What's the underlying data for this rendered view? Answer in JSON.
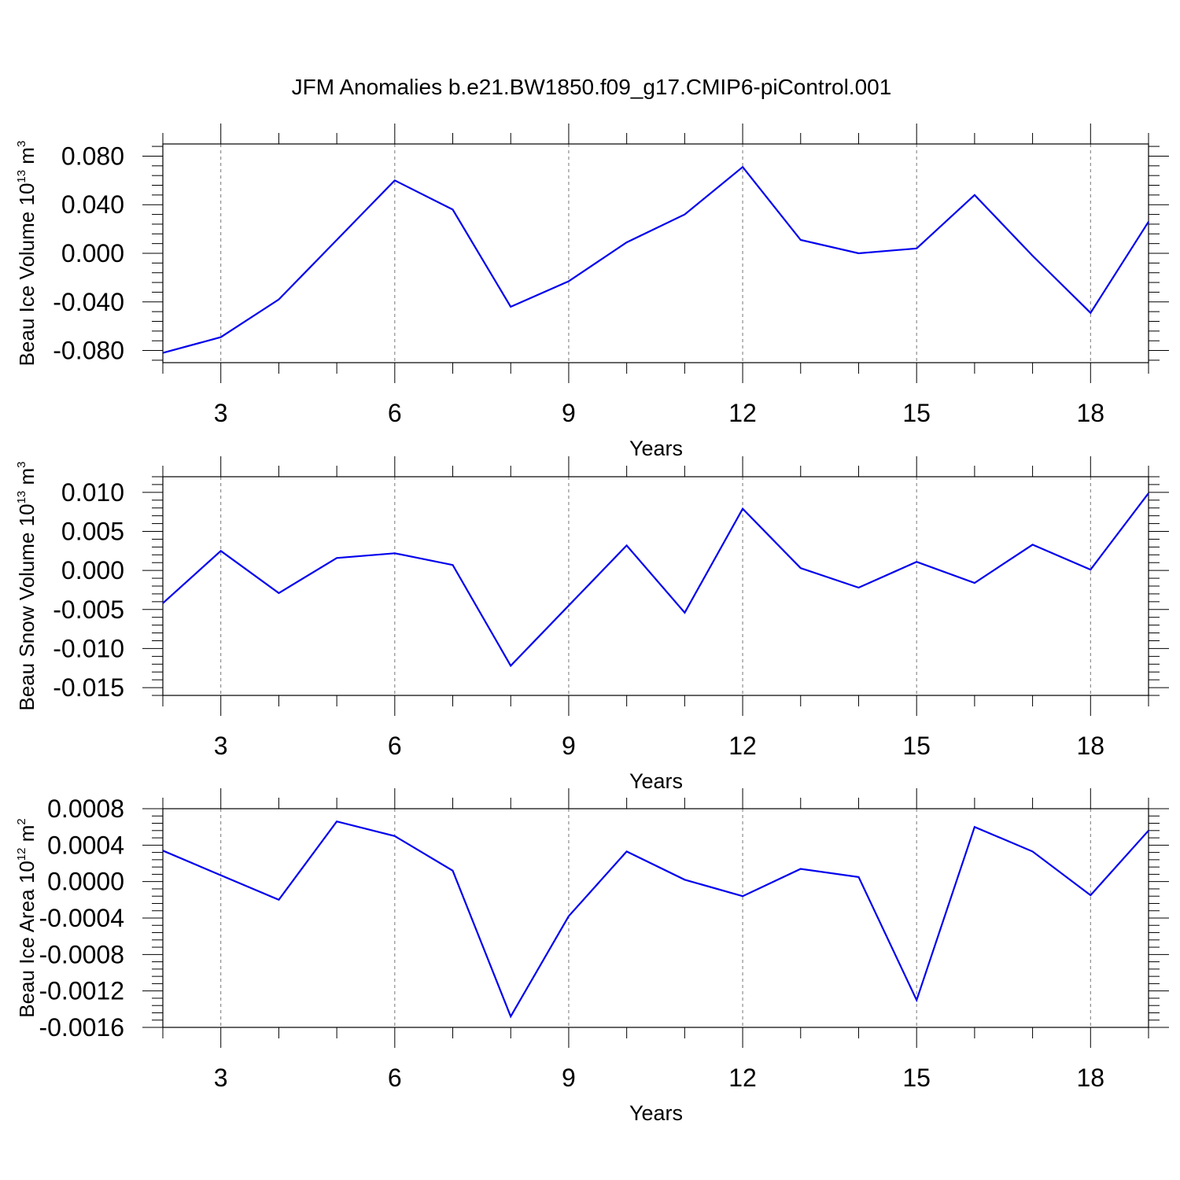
{
  "title": "JFM Anomalies b.e21.BW1850.f09_g17.CMIP6-piControl.001",
  "colors": {
    "line": "#0000ee",
    "axes": "#000000",
    "grid": "#777777"
  },
  "chart_data": [
    {
      "type": "line",
      "ylabel": {
        "main": "Beau Ice Volume 10",
        "exp": "13",
        "unit_space": " m",
        "unit_exp": "3"
      },
      "xlabel": "Years",
      "xlim": [
        2,
        19
      ],
      "ylim": [
        -0.09,
        0.09
      ],
      "xticks": [
        3,
        6,
        9,
        12,
        15,
        18
      ],
      "yticks": [
        -0.08,
        -0.04,
        0.0,
        0.04,
        0.08
      ],
      "ytick_labels": [
        "-0.080",
        "-0.040",
        "0.000",
        "0.040",
        "0.080"
      ],
      "grid": "vertical-dashed",
      "series": [
        {
          "x": [
            2,
            3,
            4,
            5,
            6,
            7,
            8,
            9,
            10,
            11,
            12,
            13,
            14,
            15,
            16,
            17,
            18,
            19
          ],
          "values": [
            -0.082,
            -0.069,
            -0.038,
            0.011,
            0.06,
            0.036,
            -0.044,
            -0.023,
            0.009,
            0.032,
            0.071,
            0.011,
            0.0,
            0.004,
            0.048,
            -0.002,
            -0.049,
            0.026
          ]
        }
      ]
    },
    {
      "type": "line",
      "ylabel": {
        "main": "Beau Snow Volume 10",
        "exp": "13",
        "unit_space": " m",
        "unit_exp": "3"
      },
      "xlabel": "Years",
      "xlim": [
        2,
        19
      ],
      "ylim": [
        -0.016,
        0.012
      ],
      "xticks": [
        3,
        6,
        9,
        12,
        15,
        18
      ],
      "yticks": [
        -0.015,
        -0.01,
        -0.005,
        0.0,
        0.005,
        0.01
      ],
      "ytick_labels": [
        "-0.015",
        "-0.010",
        "-0.005",
        "0.000",
        "0.005",
        "0.010"
      ],
      "grid": "vertical-dashed",
      "series": [
        {
          "x": [
            2,
            3,
            4,
            5,
            6,
            7,
            8,
            9,
            10,
            11,
            12,
            13,
            14,
            15,
            16,
            17,
            18,
            19
          ],
          "values": [
            -0.0042,
            0.0025,
            -0.0029,
            0.0016,
            0.0022,
            0.0007,
            -0.0122,
            -0.0045,
            0.0032,
            -0.0054,
            0.0079,
            0.0003,
            -0.0022,
            0.0011,
            -0.0016,
            0.0033,
            0.0001,
            0.0099
          ]
        }
      ]
    },
    {
      "type": "line",
      "ylabel": {
        "main": "Beau Ice Area 10",
        "exp": "12",
        "unit_space": " m",
        "unit_exp": "2"
      },
      "xlabel": "Years",
      "xlim": [
        2,
        19
      ],
      "ylim": [
        -0.0016,
        0.0008
      ],
      "xticks": [
        3,
        6,
        9,
        12,
        15,
        18
      ],
      "yticks": [
        -0.0016,
        -0.0012,
        -0.0008,
        -0.0004,
        0.0,
        0.0004,
        0.0008
      ],
      "ytick_labels": [
        "-0.0016",
        "-0.0012",
        "-0.0008",
        "-0.0004",
        "0.0000",
        "0.0004",
        "0.0008"
      ],
      "grid": "vertical-dashed",
      "series": [
        {
          "x": [
            2,
            3,
            4,
            5,
            6,
            7,
            8,
            9,
            10,
            11,
            12,
            13,
            14,
            15,
            16,
            17,
            18,
            19
          ],
          "values": [
            0.00034,
            7e-05,
            -0.0002,
            0.00066,
            0.0005,
            0.00012,
            -0.00148,
            -0.00038,
            0.00033,
            2e-05,
            -0.00016,
            0.00014,
            5e-05,
            -0.0013,
            0.0006,
            0.00033,
            -0.00015,
            0.00056
          ]
        }
      ]
    }
  ]
}
